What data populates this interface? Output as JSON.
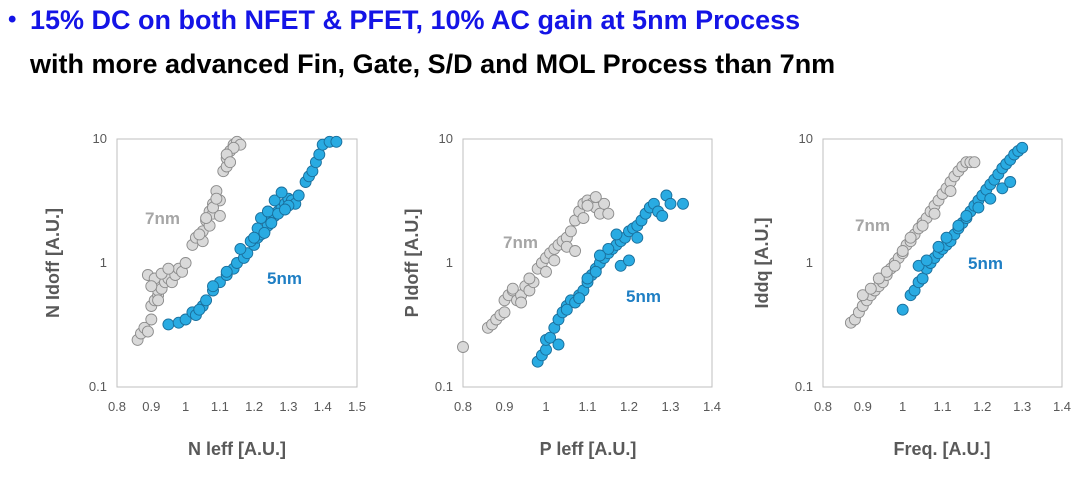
{
  "headline": {
    "bullet": "•",
    "line1": "15% DC on both NFET & PFET, 10% AC gain at 5nm Process",
    "line2": "with more advanced Fin, Gate, S/D and MOL Process than 7nm"
  },
  "colors": {
    "headline_accent": "#1414e6",
    "series_7nm_fill": "#d9d9d9",
    "series_7nm_label": "#a6a6a6",
    "series_5nm_fill": "#29abe2",
    "series_5nm_label": "#1f7fc4",
    "axis_text": "#595959"
  },
  "chart_data": [
    {
      "type": "scatter",
      "xlabel": "N leff [A.U.]",
      "ylabel": "N Idoff [A.U.]",
      "xlim": [
        0.8,
        1.5
      ],
      "ylim": [
        0.1,
        10
      ],
      "yscale": "log",
      "xticks": [
        "0.8",
        "0.9",
        "1",
        "1.1",
        "1.2",
        "1.3",
        "1.4",
        "1.5"
      ],
      "yticks": [
        "0.1",
        "1",
        "10"
      ],
      "grid": false,
      "series": [
        {
          "name": "7nm",
          "x": [
            0.86,
            0.87,
            0.88,
            0.89,
            0.9,
            0.9,
            0.91,
            0.92,
            0.92,
            0.93,
            0.94,
            0.95,
            0.96,
            0.97,
            0.98,
            0.99,
            1.0,
            1.02,
            1.03,
            1.05,
            1.06,
            1.07,
            1.08,
            1.09,
            1.05,
            1.07,
            1.08,
            1.1,
            1.11,
            1.12,
            1.12,
            1.13,
            1.14,
            1.15,
            1.16,
            1.14,
            1.12,
            1.13,
            0.89,
            0.91,
            0.93,
            0.95,
            0.9,
            0.92,
            1.04,
            1.06,
            1.08,
            1.1,
            1.09
          ],
          "y": [
            0.24,
            0.27,
            0.3,
            0.28,
            0.35,
            0.45,
            0.5,
            0.55,
            0.6,
            0.62,
            0.7,
            0.75,
            0.7,
            0.8,
            0.9,
            0.85,
            1.0,
            1.4,
            1.6,
            1.8,
            2.2,
            2.6,
            3.0,
            3.8,
            1.5,
            2.0,
            2.5,
            3.2,
            5.5,
            6.0,
            7.0,
            8.0,
            9.0,
            9.5,
            9.0,
            8.5,
            7.5,
            6.5,
            0.8,
            0.75,
            0.82,
            0.9,
            0.65,
            0.5,
            1.7,
            2.3,
            2.8,
            2.4,
            3.3
          ]
        },
        {
          "name": "5nm",
          "x": [
            0.95,
            0.98,
            1.0,
            1.02,
            1.03,
            1.05,
            1.06,
            1.08,
            1.1,
            1.12,
            1.14,
            1.15,
            1.17,
            1.18,
            1.2,
            1.21,
            1.22,
            1.23,
            1.24,
            1.25,
            1.26,
            1.27,
            1.28,
            1.29,
            1.3,
            1.31,
            1.32,
            1.33,
            1.35,
            1.36,
            1.37,
            1.38,
            1.39,
            1.4,
            1.42,
            1.44,
            1.22,
            1.24,
            1.26,
            1.28,
            1.3,
            1.16,
            1.19,
            1.21,
            1.25,
            1.27,
            1.29,
            1.23,
            1.2,
            1.12,
            1.08,
            1.04
          ],
          "y": [
            0.32,
            0.33,
            0.35,
            0.4,
            0.38,
            0.45,
            0.5,
            0.6,
            0.7,
            0.8,
            0.9,
            1.0,
            1.1,
            1.2,
            1.4,
            1.6,
            1.7,
            1.8,
            2.0,
            2.2,
            2.4,
            2.6,
            2.8,
            3.0,
            3.3,
            3.2,
            3.0,
            3.5,
            4.5,
            5.0,
            5.5,
            6.5,
            7.5,
            9.0,
            9.5,
            9.5,
            2.3,
            2.6,
            3.2,
            3.7,
            2.9,
            1.3,
            1.5,
            1.9,
            2.1,
            2.5,
            2.7,
            1.75,
            1.6,
            0.85,
            0.65,
            0.42
          ]
        }
      ],
      "annotations": [
        "7nm",
        "5nm"
      ]
    },
    {
      "type": "scatter",
      "xlabel": "P leff [A.U.]",
      "ylabel": "P Idoff [A.U.]",
      "xlim": [
        0.8,
        1.4
      ],
      "ylim": [
        0.1,
        10
      ],
      "yscale": "log",
      "xticks": [
        "0.8",
        "0.9",
        "1",
        "1.1",
        "1.2",
        "1.3",
        "1.4"
      ],
      "yticks": [
        "0.1",
        "1",
        "10"
      ],
      "grid": false,
      "series": [
        {
          "name": "7nm",
          "x": [
            0.8,
            0.86,
            0.87,
            0.88,
            0.89,
            0.9,
            0.9,
            0.91,
            0.92,
            0.93,
            0.94,
            0.95,
            0.96,
            0.97,
            0.98,
            0.99,
            1.0,
            1.01,
            1.02,
            1.03,
            1.04,
            1.05,
            1.06,
            1.07,
            1.08,
            1.09,
            1.1,
            1.11,
            1.12,
            1.13,
            1.14,
            1.15,
            1.12,
            1.1,
            1.09,
            0.92,
            0.94,
            0.96,
            1.0,
            1.02,
            1.05,
            1.07
          ],
          "y": [
            0.21,
            0.3,
            0.32,
            0.35,
            0.38,
            0.4,
            0.5,
            0.55,
            0.6,
            0.5,
            0.55,
            0.65,
            0.6,
            0.7,
            0.9,
            1.0,
            1.1,
            1.2,
            1.3,
            1.4,
            1.5,
            1.6,
            1.8,
            2.2,
            2.6,
            3.0,
            3.2,
            3.0,
            2.8,
            2.5,
            3.0,
            2.5,
            3.4,
            2.9,
            2.3,
            0.62,
            0.48,
            0.75,
            0.85,
            1.05,
            1.35,
            1.25
          ]
        },
        {
          "name": "5nm",
          "x": [
            0.98,
            0.99,
            1.0,
            1.0,
            1.01,
            1.02,
            1.03,
            1.04,
            1.05,
            1.06,
            1.07,
            1.08,
            1.09,
            1.1,
            1.11,
            1.12,
            1.13,
            1.14,
            1.15,
            1.16,
            1.17,
            1.18,
            1.19,
            1.2,
            1.21,
            1.22,
            1.23,
            1.24,
            1.25,
            1.26,
            1.27,
            1.28,
            1.29,
            1.3,
            1.33,
            1.1,
            1.12,
            1.15,
            1.18,
            1.2,
            1.22,
            1.05,
            1.08,
            1.03,
            1.13,
            1.17
          ],
          "y": [
            0.16,
            0.18,
            0.2,
            0.24,
            0.25,
            0.3,
            0.35,
            0.4,
            0.45,
            0.5,
            0.48,
            0.55,
            0.6,
            0.7,
            0.8,
            0.9,
            1.0,
            1.1,
            1.2,
            1.3,
            1.4,
            1.5,
            1.6,
            1.8,
            1.9,
            2.0,
            2.2,
            2.5,
            2.8,
            3.0,
            2.6,
            2.4,
            3.5,
            3.0,
            3.0,
            0.75,
            0.85,
            1.3,
            0.95,
            1.05,
            1.6,
            0.42,
            0.52,
            0.22,
            1.15,
            1.7
          ]
        }
      ],
      "annotations": [
        "7nm",
        "5nm"
      ]
    },
    {
      "type": "scatter",
      "xlabel": "Freq. [A.U.]",
      "ylabel": "Iddq [A.U.]",
      "xlim": [
        0.8,
        1.4
      ],
      "ylim": [
        0.1,
        10
      ],
      "yscale": "log",
      "xticks": [
        "0.8",
        "0.9",
        "1",
        "1.1",
        "1.2",
        "1.3",
        "1.4"
      ],
      "yticks": [
        "0.1",
        "1",
        "10"
      ],
      "grid": false,
      "series": [
        {
          "name": "7nm",
          "x": [
            0.87,
            0.88,
            0.89,
            0.9,
            0.91,
            0.92,
            0.93,
            0.94,
            0.95,
            0.96,
            0.97,
            0.98,
            0.99,
            1.0,
            1.01,
            1.02,
            1.03,
            1.04,
            1.05,
            1.06,
            1.07,
            1.08,
            1.09,
            1.1,
            1.11,
            1.12,
            1.13,
            1.14,
            1.15,
            1.16,
            1.17,
            1.18,
            0.9,
            0.92,
            0.94,
            0.96,
            0.98,
            1.0,
            1.02,
            1.05,
            1.08,
            1.12
          ],
          "y": [
            0.33,
            0.35,
            0.4,
            0.45,
            0.5,
            0.55,
            0.6,
            0.65,
            0.7,
            0.8,
            0.9,
            1.0,
            1.1,
            1.2,
            1.4,
            1.5,
            1.7,
            1.9,
            2.1,
            2.3,
            2.6,
            2.9,
            3.2,
            3.6,
            4.0,
            4.5,
            5.0,
            5.5,
            6.0,
            6.5,
            6.5,
            6.5,
            0.55,
            0.62,
            0.75,
            0.85,
            0.95,
            1.25,
            1.6,
            2.0,
            2.5,
            3.8
          ]
        },
        {
          "name": "5nm",
          "x": [
            1.0,
            1.02,
            1.03,
            1.04,
            1.05,
            1.06,
            1.07,
            1.08,
            1.09,
            1.1,
            1.11,
            1.12,
            1.13,
            1.14,
            1.15,
            1.16,
            1.17,
            1.18,
            1.19,
            1.2,
            1.21,
            1.22,
            1.23,
            1.24,
            1.25,
            1.26,
            1.27,
            1.28,
            1.29,
            1.3,
            1.04,
            1.06,
            1.09,
            1.11,
            1.14,
            1.16,
            1.19,
            1.22,
            1.25,
            1.27
          ],
          "y": [
            0.42,
            0.55,
            0.6,
            0.7,
            0.75,
            0.9,
            1.0,
            1.1,
            1.2,
            1.3,
            1.4,
            1.5,
            1.7,
            1.9,
            2.1,
            2.3,
            2.6,
            2.9,
            3.2,
            3.5,
            3.9,
            4.3,
            4.7,
            5.2,
            5.8,
            6.3,
            6.8,
            7.5,
            8.0,
            8.5,
            0.95,
            1.05,
            1.35,
            1.6,
            2.0,
            2.4,
            2.8,
            3.3,
            4.0,
            4.5
          ]
        }
      ],
      "annotations": [
        "7nm",
        "5nm"
      ]
    }
  ]
}
